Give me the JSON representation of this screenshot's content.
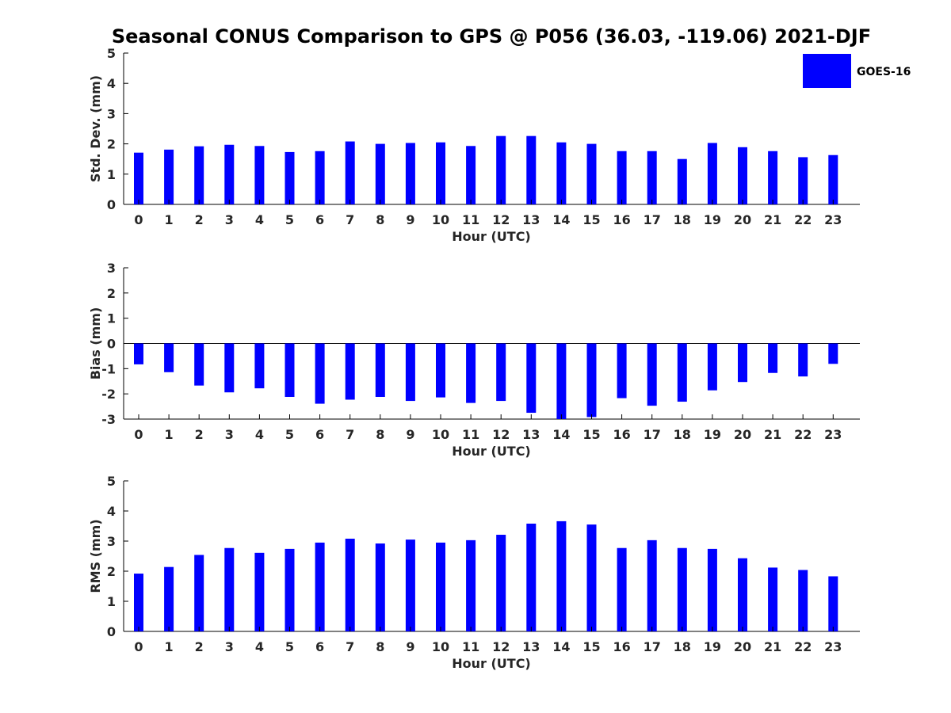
{
  "figure": {
    "title": "Seasonal CONUS Comparison to GPS @ P056 (36.03, -119.06) 2021-DJF",
    "legend": {
      "label": "GOES-16",
      "color": "#0000ff"
    }
  },
  "chart_data": [
    {
      "type": "bar",
      "title": "",
      "xlabel": "Hour (UTC)",
      "ylabel": "Std. Dev. (mm)",
      "ylim": [
        0,
        5
      ],
      "yticks": [
        0,
        1,
        2,
        3,
        4,
        5
      ],
      "categories": [
        "0",
        "1",
        "2",
        "3",
        "4",
        "5",
        "6",
        "7",
        "8",
        "9",
        "10",
        "11",
        "12",
        "13",
        "14",
        "15",
        "16",
        "17",
        "18",
        "19",
        "20",
        "21",
        "22",
        "23"
      ],
      "series": [
        {
          "name": "GOES-16",
          "color": "#0000ff",
          "values": [
            1.71,
            1.81,
            1.92,
            1.97,
            1.93,
            1.73,
            1.76,
            2.08,
            2.0,
            2.03,
            2.05,
            1.93,
            2.26,
            2.26,
            2.05,
            2.0,
            1.76,
            1.76,
            1.5,
            2.03,
            1.89,
            1.76,
            1.56,
            1.63
          ]
        }
      ],
      "legend_position": "top-right",
      "grid": false
    },
    {
      "type": "bar",
      "title": "",
      "xlabel": "Hour (UTC)",
      "ylabel": "Bias (mm)",
      "ylim": [
        -3,
        3
      ],
      "yticks": [
        -3,
        -2,
        -1,
        0,
        1,
        2,
        3
      ],
      "categories": [
        "0",
        "1",
        "2",
        "3",
        "4",
        "5",
        "6",
        "7",
        "8",
        "9",
        "10",
        "11",
        "12",
        "13",
        "14",
        "15",
        "16",
        "17",
        "18",
        "19",
        "20",
        "21",
        "22",
        "23"
      ],
      "series": [
        {
          "name": "GOES-16",
          "color": "#0000ff",
          "values": [
            -0.83,
            -1.14,
            -1.67,
            -1.94,
            -1.78,
            -2.12,
            -2.39,
            -2.23,
            -2.12,
            -2.28,
            -2.14,
            -2.36,
            -2.28,
            -2.75,
            -3.0,
            -2.92,
            -2.17,
            -2.47,
            -2.31,
            -1.86,
            -1.53,
            -1.17,
            -1.31,
            -0.81
          ]
        }
      ],
      "grid": false
    },
    {
      "type": "bar",
      "title": "",
      "xlabel": "Hour (UTC)",
      "ylabel": "RMS (mm)",
      "ylim": [
        0,
        5
      ],
      "yticks": [
        0,
        1,
        2,
        3,
        4,
        5
      ],
      "categories": [
        "0",
        "1",
        "2",
        "3",
        "4",
        "5",
        "6",
        "7",
        "8",
        "9",
        "10",
        "11",
        "12",
        "13",
        "14",
        "15",
        "16",
        "17",
        "18",
        "19",
        "20",
        "21",
        "22",
        "23"
      ],
      "series": [
        {
          "name": "GOES-16",
          "color": "#0000ff",
          "values": [
            1.92,
            2.14,
            2.54,
            2.77,
            2.61,
            2.74,
            2.95,
            3.08,
            2.92,
            3.05,
            2.95,
            3.03,
            3.21,
            3.58,
            3.66,
            3.55,
            2.77,
            3.03,
            2.77,
            2.74,
            2.43,
            2.12,
            2.04,
            1.83
          ]
        }
      ],
      "grid": false
    }
  ]
}
